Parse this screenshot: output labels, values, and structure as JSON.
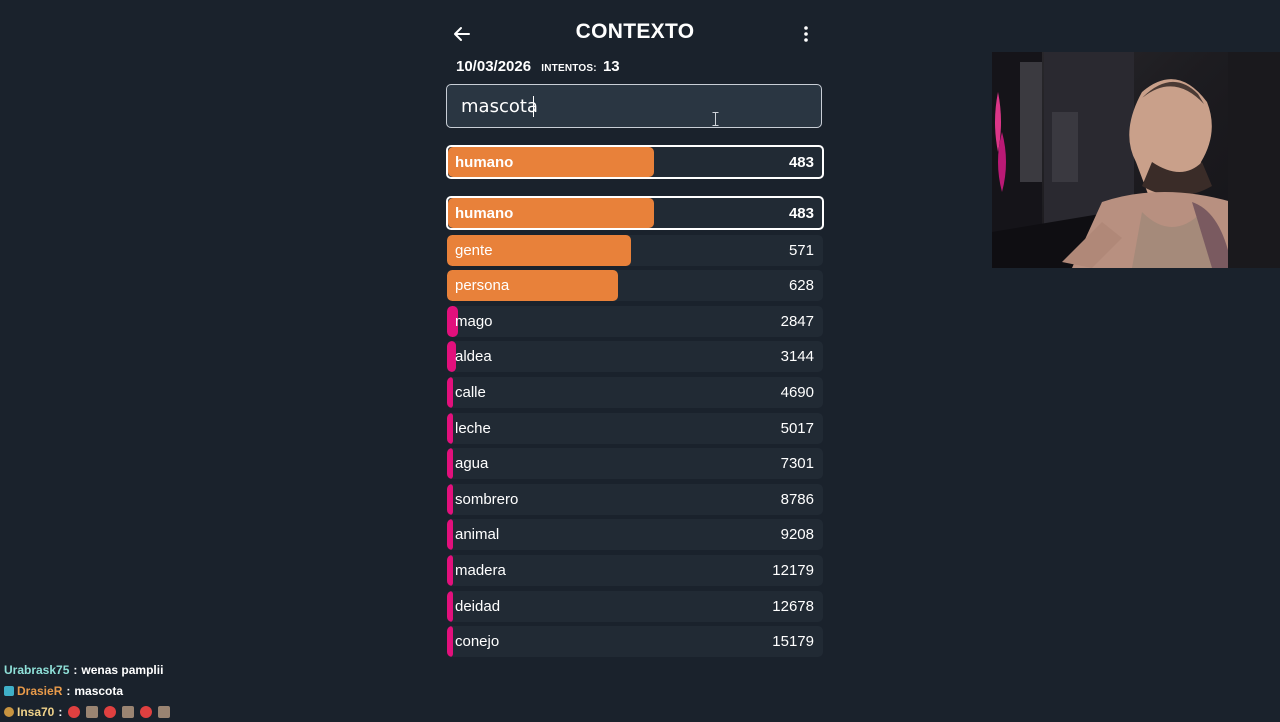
{
  "header": {
    "title": "CONTEXTO",
    "date": "10/03/2026",
    "attempts_label": "INTENTOS:",
    "attempts_value": "13"
  },
  "search": {
    "value": "mascota"
  },
  "last_guess": {
    "word": "humano",
    "rank": "483",
    "fill": 0.55
  },
  "colors": {
    "close": "#e8813a",
    "far": "#e2107c",
    "row_bg": "#212a34",
    "page_bg": "#1a222c"
  },
  "guesses": [
    {
      "word": "humano",
      "rank": "483",
      "fill": 0.55,
      "color": "#e8813a",
      "highlight": true
    },
    {
      "word": "gente",
      "rank": "571",
      "fill": 0.49,
      "color": "#e8813a"
    },
    {
      "word": "persona",
      "rank": "628",
      "fill": 0.455,
      "color": "#e8813a"
    },
    {
      "word": "mago",
      "rank": "2847",
      "fill": 0.028,
      "color": "#e2107c"
    },
    {
      "word": "aldea",
      "rank": "3144",
      "fill": 0.024,
      "color": "#e2107c"
    },
    {
      "word": "calle",
      "rank": "4690",
      "fill": 0.012,
      "color": "#e2107c"
    },
    {
      "word": "leche",
      "rank": "5017",
      "fill": 0.012,
      "color": "#e2107c"
    },
    {
      "word": "agua",
      "rank": "7301",
      "fill": 0.012,
      "color": "#e2107c"
    },
    {
      "word": "sombrero",
      "rank": "8786",
      "fill": 0.012,
      "color": "#e2107c"
    },
    {
      "word": "animal",
      "rank": "9208",
      "fill": 0.012,
      "color": "#e2107c"
    },
    {
      "word": "madera",
      "rank": "12179",
      "fill": 0.012,
      "color": "#e2107c"
    },
    {
      "word": "deidad",
      "rank": "12678",
      "fill": 0.012,
      "color": "#e2107c"
    },
    {
      "word": "conejo",
      "rank": "15179",
      "fill": 0.012,
      "color": "#e2107c"
    }
  ],
  "chat": [
    {
      "user": "Urabrask75",
      "user_color": "#8fe0d8",
      "sep": ":",
      "message": "wenas pamplii",
      "badge": "none"
    },
    {
      "user": "DrasieR",
      "user_color": "#e89a4a",
      "sep": ":",
      "message": "mascota",
      "badge": "controller-badge"
    },
    {
      "user": "Insa70",
      "user_color": "#f0d28a",
      "sep": ":",
      "message": "",
      "badge": "star-badge",
      "emotes": [
        "red-ball-emote",
        "hand-emote",
        "red-ball-emote",
        "hand-emote",
        "red-ball-emote",
        "hand-emote"
      ]
    }
  ]
}
